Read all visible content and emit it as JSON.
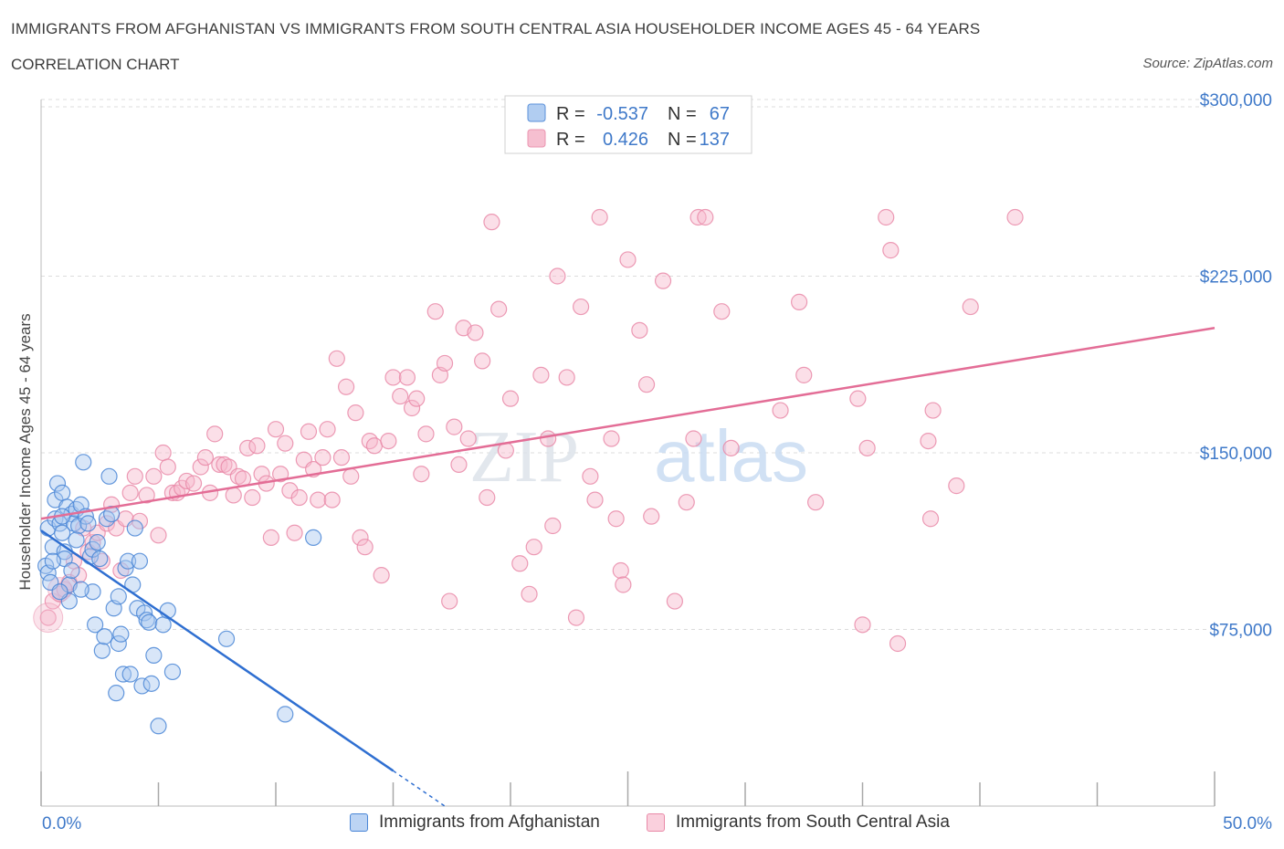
{
  "title": "IMMIGRANTS FROM AFGHANISTAN VS IMMIGRANTS FROM SOUTH CENTRAL ASIA HOUSEHOLDER INCOME AGES 45 - 64 YEARS",
  "subtitle": "CORRELATION CHART",
  "source": "Source: ZipAtlas.com",
  "watermark": {
    "zip": "ZIP",
    "atlas": "atlas"
  },
  "colors": {
    "blue_fill": "#a9c8f0",
    "blue_stroke": "#4a86d6",
    "blue_line": "#2f6fd1",
    "pink_fill": "#f6b9cc",
    "pink_stroke": "#e98aa8",
    "pink_line": "#e36d96",
    "axis_value_text": "#3f79c9",
    "grid": "#dcdcdc"
  },
  "legend_stats": [
    {
      "r_label": "R = ",
      "r_value": "-0.537",
      "n_label": "N = ",
      "n_value": "67",
      "color": "blue"
    },
    {
      "r_label": "R = ",
      "r_value": "0.426",
      "n_label": "N = ",
      "n_value": "137",
      "color": "pink"
    }
  ],
  "chart_data": {
    "type": "scatter",
    "title": "IMMIGRANTS FROM AFGHANISTAN VS IMMIGRANTS FROM SOUTH CENTRAL ASIA HOUSEHOLDER INCOME AGES 45 - 64 YEARS",
    "subtitle": "CORRELATION CHART",
    "xlabel": "",
    "ylabel": "Householder Income Ages 45 - 64 years",
    "xlim": [
      0,
      50
    ],
    "ylim": [
      0,
      300000
    ],
    "x_tick_labels": [
      "0.0%",
      "50.0%"
    ],
    "y_ticks": [
      75000,
      150000,
      225000,
      300000
    ],
    "y_tick_labels": [
      "$75,000",
      "$150,000",
      "$225,000",
      "$300,000"
    ],
    "grid": true,
    "legend_position": "bottom",
    "series": [
      {
        "name": "Immigrants from Afghanistan",
        "color": "blue",
        "R": -0.537,
        "N": 67,
        "trend": {
          "x": [
            0,
            15
          ],
          "y": [
            117000,
            15000
          ],
          "dashed_to": {
            "x": 17.2,
            "y": 0
          }
        },
        "points": [
          [
            0.2,
            102000
          ],
          [
            0.3,
            99000
          ],
          [
            0.4,
            95000
          ],
          [
            0.3,
            118000
          ],
          [
            0.5,
            110000
          ],
          [
            0.6,
            122000
          ],
          [
            0.6,
            130000
          ],
          [
            0.7,
            137000
          ],
          [
            0.8,
            120000
          ],
          [
            0.9,
            116000
          ],
          [
            0.9,
            133000
          ],
          [
            1.0,
            108000
          ],
          [
            1.1,
            127000
          ],
          [
            1.2,
            94000
          ],
          [
            1.2,
            87000
          ],
          [
            1.3,
            124000
          ],
          [
            1.4,
            120000
          ],
          [
            1.5,
            126000
          ],
          [
            1.6,
            119000
          ],
          [
            1.7,
            128000
          ],
          [
            1.8,
            146000
          ],
          [
            1.9,
            123000
          ],
          [
            2.0,
            120000
          ],
          [
            2.1,
            106000
          ],
          [
            2.2,
            109000
          ],
          [
            2.2,
            91000
          ],
          [
            2.3,
            77000
          ],
          [
            2.5,
            105000
          ],
          [
            2.6,
            66000
          ],
          [
            2.7,
            72000
          ],
          [
            2.8,
            122000
          ],
          [
            2.9,
            140000
          ],
          [
            3.0,
            124000
          ],
          [
            3.1,
            84000
          ],
          [
            3.2,
            48000
          ],
          [
            3.3,
            69000
          ],
          [
            3.4,
            73000
          ],
          [
            3.5,
            56000
          ],
          [
            3.6,
            101000
          ],
          [
            3.7,
            104000
          ],
          [
            3.8,
            56000
          ],
          [
            3.9,
            94000
          ],
          [
            4.0,
            118000
          ],
          [
            4.1,
            84000
          ],
          [
            4.2,
            104000
          ],
          [
            4.3,
            51000
          ],
          [
            4.4,
            82000
          ],
          [
            4.5,
            79000
          ],
          [
            4.6,
            78000
          ],
          [
            4.7,
            52000
          ],
          [
            4.8,
            64000
          ],
          [
            5.0,
            34000
          ],
          [
            5.2,
            77000
          ],
          [
            5.4,
            83000
          ],
          [
            5.6,
            57000
          ],
          [
            7.9,
            71000
          ],
          [
            10.4,
            39000
          ],
          [
            11.6,
            114000
          ],
          [
            0.8,
            91000
          ],
          [
            1.0,
            105000
          ],
          [
            1.5,
            113000
          ],
          [
            2.4,
            112000
          ],
          [
            0.5,
            104000
          ],
          [
            0.9,
            123000
          ],
          [
            1.3,
            100000
          ],
          [
            1.7,
            92000
          ],
          [
            3.3,
            89000
          ]
        ]
      },
      {
        "name": "Immigrants from South Central Asia",
        "color": "pink",
        "R": 0.426,
        "N": 137,
        "trend": {
          "x": [
            0,
            50
          ],
          "y": [
            122000,
            203000
          ]
        },
        "points": [
          [
            0.3,
            80000
          ],
          [
            0.5,
            87000
          ],
          [
            0.8,
            90000
          ],
          [
            1.0,
            92000
          ],
          [
            1.2,
            95000
          ],
          [
            1.4,
            104000
          ],
          [
            1.6,
            98000
          ],
          [
            1.8,
            118000
          ],
          [
            2.0,
            108000
          ],
          [
            2.2,
            112000
          ],
          [
            2.4,
            116000
          ],
          [
            2.6,
            104000
          ],
          [
            2.8,
            120000
          ],
          [
            3.0,
            128000
          ],
          [
            3.2,
            118000
          ],
          [
            3.4,
            100000
          ],
          [
            3.6,
            122000
          ],
          [
            3.8,
            133000
          ],
          [
            4.0,
            140000
          ],
          [
            4.2,
            121000
          ],
          [
            4.5,
            132000
          ],
          [
            4.8,
            140000
          ],
          [
            5.0,
            115000
          ],
          [
            5.2,
            150000
          ],
          [
            5.4,
            144000
          ],
          [
            5.6,
            133000
          ],
          [
            5.8,
            133000
          ],
          [
            6.0,
            135000
          ],
          [
            6.2,
            138000
          ],
          [
            6.5,
            137000
          ],
          [
            6.8,
            144000
          ],
          [
            7.0,
            148000
          ],
          [
            7.2,
            133000
          ],
          [
            7.4,
            158000
          ],
          [
            7.6,
            145000
          ],
          [
            7.8,
            145000
          ],
          [
            8.0,
            144000
          ],
          [
            8.2,
            132000
          ],
          [
            8.4,
            140000
          ],
          [
            8.6,
            139000
          ],
          [
            8.8,
            152000
          ],
          [
            9.0,
            131000
          ],
          [
            9.2,
            153000
          ],
          [
            9.4,
            141000
          ],
          [
            9.6,
            137000
          ],
          [
            9.8,
            114000
          ],
          [
            10.0,
            160000
          ],
          [
            10.2,
            141000
          ],
          [
            10.4,
            154000
          ],
          [
            10.6,
            134000
          ],
          [
            10.8,
            116000
          ],
          [
            11.0,
            131000
          ],
          [
            11.2,
            147000
          ],
          [
            11.4,
            159000
          ],
          [
            11.6,
            143000
          ],
          [
            11.8,
            130000
          ],
          [
            12.0,
            148000
          ],
          [
            12.2,
            160000
          ],
          [
            12.4,
            130000
          ],
          [
            12.6,
            190000
          ],
          [
            12.8,
            148000
          ],
          [
            13.0,
            178000
          ],
          [
            13.2,
            140000
          ],
          [
            13.4,
            167000
          ],
          [
            13.6,
            114000
          ],
          [
            13.8,
            110000
          ],
          [
            14.0,
            155000
          ],
          [
            14.2,
            153000
          ],
          [
            14.5,
            98000
          ],
          [
            14.8,
            155000
          ],
          [
            15.0,
            182000
          ],
          [
            15.3,
            174000
          ],
          [
            15.6,
            182000
          ],
          [
            15.8,
            169000
          ],
          [
            16.0,
            173000
          ],
          [
            16.2,
            141000
          ],
          [
            16.4,
            158000
          ],
          [
            16.8,
            210000
          ],
          [
            17.0,
            183000
          ],
          [
            17.2,
            188000
          ],
          [
            17.4,
            87000
          ],
          [
            17.6,
            161000
          ],
          [
            17.8,
            145000
          ],
          [
            18.0,
            203000
          ],
          [
            18.2,
            156000
          ],
          [
            18.5,
            201000
          ],
          [
            18.8,
            189000
          ],
          [
            19.0,
            131000
          ],
          [
            19.2,
            248000
          ],
          [
            19.5,
            211000
          ],
          [
            19.8,
            151000
          ],
          [
            20.0,
            173000
          ],
          [
            20.4,
            103000
          ],
          [
            20.8,
            90000
          ],
          [
            21.0,
            110000
          ],
          [
            21.3,
            183000
          ],
          [
            21.6,
            156000
          ],
          [
            21.8,
            119000
          ],
          [
            22.0,
            225000
          ],
          [
            22.4,
            182000
          ],
          [
            22.8,
            80000
          ],
          [
            23.0,
            212000
          ],
          [
            23.4,
            140000
          ],
          [
            23.6,
            130000
          ],
          [
            23.8,
            250000
          ],
          [
            24.3,
            156000
          ],
          [
            24.5,
            122000
          ],
          [
            24.7,
            100000
          ],
          [
            24.8,
            94000
          ],
          [
            25.0,
            232000
          ],
          [
            25.5,
            202000
          ],
          [
            25.8,
            179000
          ],
          [
            26.0,
            123000
          ],
          [
            26.5,
            223000
          ],
          [
            27.0,
            87000
          ],
          [
            27.5,
            129000
          ],
          [
            27.8,
            156000
          ],
          [
            28.0,
            250000
          ],
          [
            28.3,
            250000
          ],
          [
            29.0,
            210000
          ],
          [
            29.4,
            152000
          ],
          [
            31.5,
            168000
          ],
          [
            32.3,
            214000
          ],
          [
            32.5,
            183000
          ],
          [
            33.0,
            129000
          ],
          [
            34.8,
            173000
          ],
          [
            35.0,
            77000
          ],
          [
            35.2,
            152000
          ],
          [
            36.0,
            250000
          ],
          [
            36.2,
            236000
          ],
          [
            36.5,
            69000
          ],
          [
            37.8,
            155000
          ],
          [
            37.9,
            122000
          ],
          [
            38.0,
            168000
          ],
          [
            39.0,
            136000
          ],
          [
            39.6,
            212000
          ],
          [
            41.5,
            250000
          ]
        ]
      }
    ]
  }
}
